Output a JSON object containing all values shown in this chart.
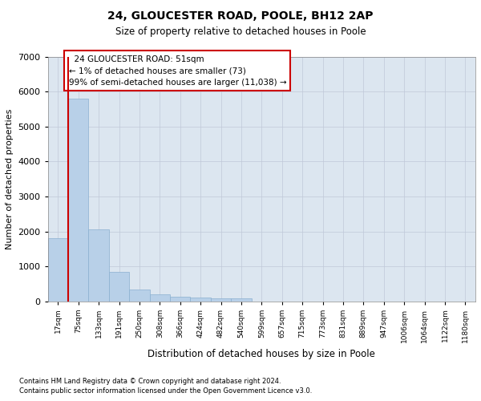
{
  "title": "24, GLOUCESTER ROAD, POOLE, BH12 2AP",
  "subtitle": "Size of property relative to detached houses in Poole",
  "xlabel": "Distribution of detached houses by size in Poole",
  "ylabel": "Number of detached properties",
  "footnote1": "Contains HM Land Registry data © Crown copyright and database right 2024.",
  "footnote2": "Contains public sector information licensed under the Open Government Licence v3.0.",
  "annotation_line1": "  24 GLOUCESTER ROAD: 51sqm",
  "annotation_line2": "← 1% of detached houses are smaller (73)",
  "annotation_line3": "99% of semi-detached houses are larger (11,038) →",
  "bar_color": "#b8d0e8",
  "bar_edge_color": "#8ab0d0",
  "highlight_color": "#cc0000",
  "background_color": "#ffffff",
  "axes_bg_color": "#dce6f0",
  "grid_color": "#c0c8d8",
  "bin_labels": [
    "17sqm",
    "75sqm",
    "133sqm",
    "191sqm",
    "250sqm",
    "308sqm",
    "366sqm",
    "424sqm",
    "482sqm",
    "540sqm",
    "599sqm",
    "657sqm",
    "715sqm",
    "773sqm",
    "831sqm",
    "889sqm",
    "947sqm",
    "1006sqm",
    "1064sqm",
    "1122sqm",
    "1180sqm"
  ],
  "bar_values": [
    1800,
    5800,
    2060,
    830,
    340,
    190,
    120,
    110,
    90,
    80,
    0,
    0,
    0,
    0,
    0,
    0,
    0,
    0,
    0,
    0,
    0
  ],
  "ylim": [
    0,
    7000
  ],
  "yticks": [
    0,
    1000,
    2000,
    3000,
    4000,
    5000,
    6000,
    7000
  ],
  "n_bars": 21
}
